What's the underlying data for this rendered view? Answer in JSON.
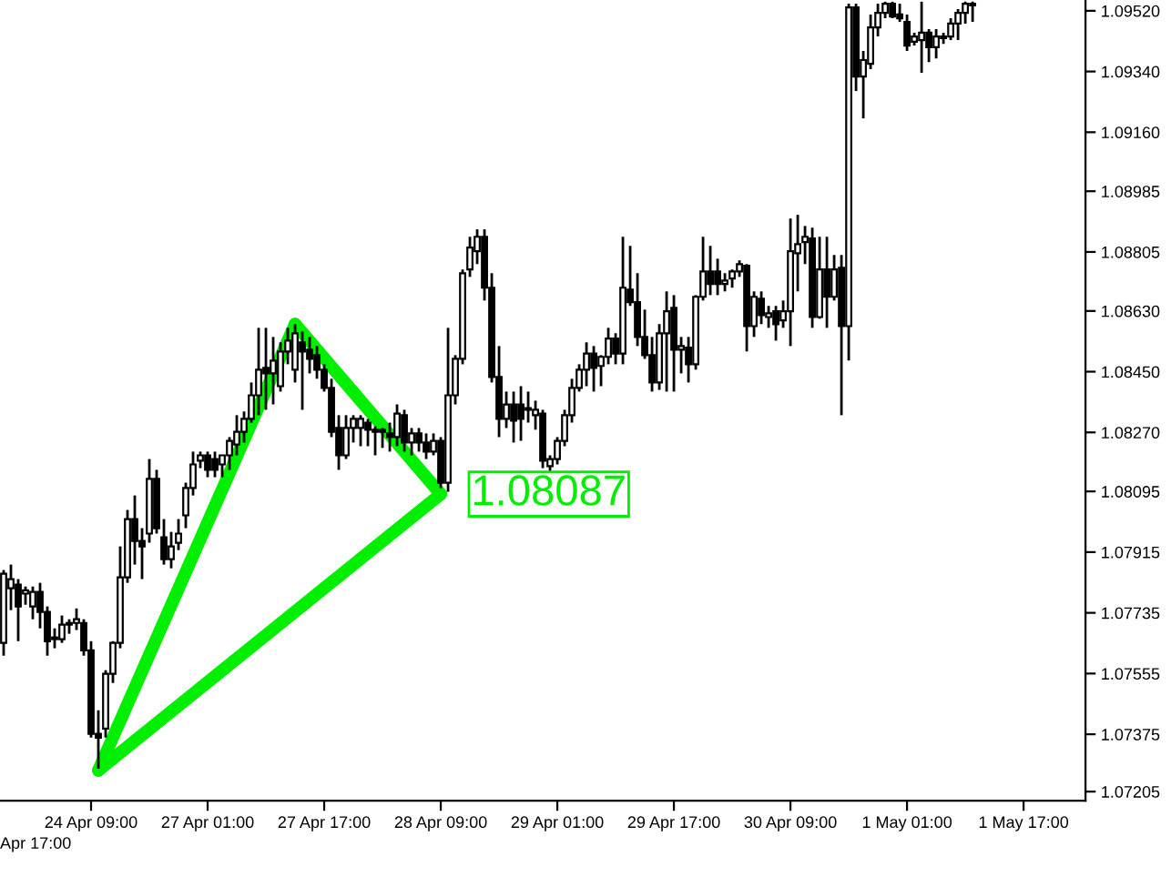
{
  "chart_data": {
    "type": "candlestick",
    "color": "#000000",
    "categories": [
      null,
      null,
      null,
      null,
      null,
      null,
      null,
      null,
      null,
      null,
      null,
      null,
      "24 Apr 09:00",
      null,
      null,
      null,
      null,
      null,
      null,
      null,
      null,
      null,
      null,
      null,
      null,
      null,
      null,
      null,
      "27 Apr 01:00",
      null,
      null,
      null,
      null,
      null,
      null,
      null,
      null,
      null,
      null,
      null,
      null,
      null,
      null,
      null,
      "27 Apr 17:00",
      null,
      null,
      null,
      null,
      null,
      null,
      null,
      null,
      null,
      null,
      null,
      null,
      null,
      null,
      null,
      "28 Apr 09:00",
      null,
      null,
      null,
      null,
      null,
      null,
      null,
      null,
      null,
      null,
      null,
      null,
      null,
      null,
      null,
      "29 Apr 01:00",
      null,
      null,
      null,
      null,
      null,
      null,
      null,
      null,
      null,
      null,
      null,
      null,
      null,
      null,
      null,
      "29 Apr 17:00",
      null,
      null,
      null,
      null,
      null,
      null,
      null,
      null,
      null,
      null,
      null,
      null,
      null,
      null,
      null,
      "30 Apr 09:00",
      null,
      null,
      null,
      null,
      null,
      null,
      null,
      null,
      null,
      null,
      null,
      null,
      null,
      null,
      null,
      "1 May 01:00",
      null,
      null,
      null,
      null,
      null,
      null,
      null,
      null,
      null,
      null,
      null,
      null,
      null,
      null,
      null,
      "1 May 17:00",
      null,
      null,
      null,
      null,
      null,
      null,
      null,
      null
    ],
    "ohlc": [
      [
        1.07646,
        1.07862,
        1.07608,
        1.07851
      ],
      [
        1.07808,
        1.07878,
        1.07743,
        1.07835
      ],
      [
        1.07819,
        1.07835,
        1.07651,
        1.07754
      ],
      [
        1.07792,
        1.07813,
        1.07759,
        1.07802
      ],
      [
        1.07754,
        1.07813,
        1.07716,
        1.07797
      ],
      [
        1.07797,
        1.07824,
        1.07689,
        1.07738
      ],
      [
        1.07738,
        1.07754,
        1.07608,
        1.07651
      ],
      [
        1.07657,
        1.07689,
        1.0763,
        1.07662
      ],
      [
        1.07657,
        1.07727,
        1.07646,
        1.077
      ],
      [
        1.077,
        1.07716,
        1.07673,
        1.07705
      ],
      [
        1.07705,
        1.07748,
        1.07684,
        1.07716
      ],
      [
        1.07705,
        1.07716,
        1.07608,
        1.07624
      ],
      [
        1.07624,
        1.07651,
        1.07365,
        1.07376
      ],
      [
        1.07376,
        1.07446,
        1.07273,
        1.07365
      ],
      [
        1.07392,
        1.07565,
        1.07365,
        1.07554
      ],
      [
        1.07554,
        1.07651,
        1.07527,
        1.07646
      ],
      [
        1.07646,
        1.07932,
        1.0763,
        1.0784
      ],
      [
        1.0784,
        1.0804,
        1.07824,
        1.08013
      ],
      [
        1.08013,
        1.08083,
        1.07878,
        1.07948
      ],
      [
        1.07948,
        1.07986,
        1.07835,
        1.07932
      ],
      [
        1.0797,
        1.08191,
        1.07943,
        1.08132
      ],
      [
        1.08132,
        1.08159,
        1.0797,
        1.07986
      ],
      [
        1.07959,
        1.08013,
        1.07878,
        1.07894
      ],
      [
        1.07894,
        1.07975,
        1.07867,
        1.07932
      ],
      [
        1.07943,
        1.08013,
        1.07921,
        1.0797
      ],
      [
        1.08024,
        1.08121,
        1.07986,
        1.08105
      ],
      [
        1.08105,
        1.08213,
        1.08083,
        1.08175
      ],
      [
        1.08186,
        1.08213,
        1.08164,
        1.08202
      ],
      [
        1.08202,
        1.08213,
        1.08137,
        1.08159
      ],
      [
        1.08191,
        1.08213,
        1.08137,
        1.08159
      ],
      [
        1.08175,
        1.08202,
        1.08137,
        1.08202
      ],
      [
        1.08202,
        1.08256,
        1.08159,
        1.08245
      ],
      [
        1.08234,
        1.08321,
        1.08202,
        1.08272
      ],
      [
        1.08272,
        1.08332,
        1.0824,
        1.0831
      ],
      [
        1.0831,
        1.08418,
        1.08299,
        1.0838
      ],
      [
        1.0838,
        1.0858,
        1.08321,
        1.08456
      ],
      [
        1.08461,
        1.0858,
        1.08337,
        1.08445
      ],
      [
        1.08445,
        1.08553,
        1.08353,
        1.08483
      ],
      [
        1.08407,
        1.08537,
        1.08391,
        1.0851
      ],
      [
        1.0851,
        1.0858,
        1.08472,
        1.08542
      ],
      [
        1.08456,
        1.08591,
        1.08418,
        1.08564
      ],
      [
        1.08537,
        1.08569,
        1.08337,
        1.0851
      ],
      [
        1.08515,
        1.08553,
        1.08445,
        1.08488
      ],
      [
        1.08499,
        1.08526,
        1.08429,
        1.08456
      ],
      [
        1.08456,
        1.08472,
        1.08391,
        1.08402
      ],
      [
        1.08402,
        1.08429,
        1.08256,
        1.08272
      ],
      [
        1.08283,
        1.08321,
        1.08159,
        1.08202
      ],
      [
        1.08202,
        1.08321,
        1.08191,
        1.08283
      ],
      [
        1.08283,
        1.08321,
        1.0824,
        1.0831
      ],
      [
        1.08283,
        1.08321,
        1.08229,
        1.0831
      ],
      [
        1.08299,
        1.0831,
        1.08229,
        1.08278
      ],
      [
        1.08278,
        1.08288,
        1.08202,
        1.08272
      ],
      [
        1.08272,
        1.08283,
        1.08224,
        1.08278
      ],
      [
        1.08267,
        1.08299,
        1.08213,
        1.08256
      ],
      [
        1.08256,
        1.08353,
        1.08229,
        1.08326
      ],
      [
        1.08321,
        1.08337,
        1.08213,
        1.0824
      ],
      [
        1.0824,
        1.08283,
        1.08202,
        1.08267
      ],
      [
        1.08267,
        1.08283,
        1.08213,
        1.0824
      ],
      [
        1.0824,
        1.08267,
        1.08191,
        1.08213
      ],
      [
        1.08213,
        1.08267,
        1.08202,
        1.08245
      ],
      [
        1.08245,
        1.08256,
        1.08105,
        1.08121
      ],
      [
        1.08121,
        1.0858,
        1.08094,
        1.0838
      ],
      [
        1.0838,
        1.08499,
        1.08353,
        1.08488
      ],
      [
        1.08488,
        1.08753,
        1.08472,
        1.08742
      ],
      [
        1.08753,
        1.0885,
        1.08731,
        1.08818
      ],
      [
        1.08807,
        1.08872,
        1.08769,
        1.0885
      ],
      [
        1.0885,
        1.08872,
        1.08661,
        1.08699
      ],
      [
        1.08699,
        1.08742,
        1.08418,
        1.08434
      ],
      [
        1.08434,
        1.08526,
        1.08256,
        1.0831
      ],
      [
        1.0831,
        1.08391,
        1.08283,
        1.08353
      ],
      [
        1.08353,
        1.08391,
        1.0824,
        1.08305
      ],
      [
        1.08353,
        1.08407,
        1.08245,
        1.0831
      ],
      [
        1.08337,
        1.08391,
        1.08299,
        1.08342
      ],
      [
        1.08321,
        1.08364,
        1.08278,
        1.08337
      ],
      [
        1.08326,
        1.08337,
        1.08164,
        1.08186
      ],
      [
        1.0817,
        1.08202,
        1.08148,
        1.08191
      ],
      [
        1.08191,
        1.08256,
        1.08175,
        1.08245
      ],
      [
        1.08245,
        1.08337,
        1.08229,
        1.08321
      ],
      [
        1.08321,
        1.08429,
        1.08299,
        1.08402
      ],
      [
        1.08402,
        1.08472,
        1.08391,
        1.08456
      ],
      [
        1.08456,
        1.08537,
        1.08407,
        1.08504
      ],
      [
        1.08504,
        1.08526,
        1.08391,
        1.08461
      ],
      [
        1.08467,
        1.08499,
        1.08407,
        1.08494
      ],
      [
        1.08494,
        1.0858,
        1.08472,
        1.08548
      ],
      [
        1.08548,
        1.08564,
        1.08472,
        1.08504
      ],
      [
        1.08504,
        1.0885,
        1.08472,
        1.08699
      ],
      [
        1.08693,
        1.08823,
        1.08645,
        1.08656
      ],
      [
        1.08656,
        1.08742,
        1.08526,
        1.08553
      ],
      [
        1.08553,
        1.08634,
        1.08488,
        1.08499
      ],
      [
        1.08499,
        1.08553,
        1.08391,
        1.08418
      ],
      [
        1.08418,
        1.08591,
        1.08396,
        1.08564
      ],
      [
        1.08564,
        1.08688,
        1.08391,
        1.08629
      ],
      [
        1.08639,
        1.08677,
        1.08391,
        1.08515
      ],
      [
        1.08515,
        1.08553,
        1.08445,
        1.08526
      ],
      [
        1.08521,
        1.08553,
        1.08418,
        1.08472
      ],
      [
        1.08472,
        1.08677,
        1.08456,
        1.08672
      ],
      [
        1.08672,
        1.0885,
        1.08661,
        1.08747
      ],
      [
        1.08747,
        1.08823,
        1.08677,
        1.0871
      ],
      [
        1.08747,
        1.08785,
        1.08677,
        1.0871
      ],
      [
        1.0871,
        1.08742,
        1.08688,
        1.0872
      ],
      [
        1.08726,
        1.08753,
        1.08699,
        1.08747
      ],
      [
        1.08747,
        1.0878,
        1.08731,
        1.08769
      ],
      [
        1.08764,
        1.08769,
        1.0851,
        1.08585
      ],
      [
        1.08585,
        1.08688,
        1.08553,
        1.08672
      ],
      [
        1.08666,
        1.08688,
        1.08591,
        1.08618
      ],
      [
        1.08612,
        1.08645,
        1.0858,
        1.08623
      ],
      [
        1.08629,
        1.08645,
        1.08542,
        1.08591
      ],
      [
        1.08602,
        1.08661,
        1.0858,
        1.08629
      ],
      [
        1.08629,
        1.08904,
        1.08526,
        1.08807
      ],
      [
        1.08801,
        1.08915,
        1.08688,
        1.08828
      ],
      [
        1.08834,
        1.08882,
        1.08769,
        1.0885
      ],
      [
        1.08845,
        1.08877,
        1.0858,
        1.08612
      ],
      [
        1.08612,
        1.0885,
        1.08607,
        1.08753
      ],
      [
        1.08753,
        1.0885,
        1.0858,
        1.08672
      ],
      [
        1.08672,
        1.08796,
        1.08661,
        1.08753
      ],
      [
        1.08758,
        1.08796,
        1.08321,
        1.08585
      ],
      [
        1.08585,
        1.09541,
        1.08483,
        1.0953
      ],
      [
        1.0953,
        1.09541,
        1.09282,
        1.09325
      ],
      [
        1.09325,
        1.09401,
        1.09201,
        1.09374
      ],
      [
        1.09363,
        1.09509,
        1.09347,
        1.09471
      ],
      [
        1.09471,
        1.09541,
        1.09444,
        1.09514
      ],
      [
        1.09514,
        1.09547,
        1.09498,
        1.09541
      ],
      [
        1.09541,
        1.09547,
        1.09498,
        1.09503
      ],
      [
        1.09509,
        1.09541,
        1.09487,
        1.09498
      ],
      [
        1.09487,
        1.09509,
        1.09401,
        1.09417
      ],
      [
        1.09428,
        1.09455,
        1.09417,
        1.09444
      ],
      [
        1.09433,
        1.09547,
        1.09336,
        1.09455
      ],
      [
        1.09455,
        1.09466,
        1.09368,
        1.09412
      ],
      [
        1.09412,
        1.09466,
        1.09379,
        1.09444
      ],
      [
        1.09444,
        1.09455,
        1.09422,
        1.09439
      ],
      [
        1.09444,
        1.09498,
        1.09433,
        1.09482
      ],
      [
        1.09482,
        1.09525,
        1.09433,
        1.09514
      ],
      [
        1.09514,
        1.09547,
        1.09482,
        1.09541
      ],
      [
        1.09536,
        1.09547,
        1.09487,
        1.09541
      ],
      null,
      null,
      null,
      null,
      null,
      null,
      null,
      null,
      null,
      null,
      null,
      null,
      null,
      null,
      null
    ],
    "series": [
      {
        "type": "line",
        "color": "#00ee00",
        "values": [
          null,
          null,
          null,
          null,
          null,
          null,
          null,
          null,
          null,
          null,
          null,
          null,
          null,
          1.07268,
          null,
          null,
          null,
          null,
          null,
          null,
          null,
          null,
          null,
          null,
          null,
          null,
          null,
          null,
          null,
          null,
          null,
          null,
          null,
          null,
          null,
          null,
          null,
          null,
          null,
          null,
          1.08591,
          null,
          null,
          null,
          null,
          null,
          null,
          null,
          null,
          null,
          null,
          null,
          null,
          null,
          null,
          null,
          null,
          null,
          null,
          null,
          null,
          null,
          null,
          null,
          null,
          null,
          null,
          null,
          null,
          null,
          null,
          null,
          null,
          null,
          null,
          null,
          null,
          null,
          null,
          null,
          null,
          null,
          null,
          null,
          null,
          null,
          null,
          null,
          null,
          null,
          null,
          null,
          null,
          null,
          null,
          null,
          null,
          null,
          null,
          null,
          null,
          null,
          null,
          null,
          null,
          null,
          null,
          null,
          null,
          null,
          null,
          null,
          null,
          null,
          null,
          null,
          null,
          null,
          null,
          null,
          null,
          null,
          null,
          null,
          null,
          null,
          null,
          null,
          null,
          null,
          null,
          null,
          null,
          null,
          null,
          null,
          null,
          null,
          null,
          null,
          null,
          null,
          null,
          null,
          null,
          null,
          null,
          null,
          null
        ]
      },
      {
        "type": "line",
        "color": "#00ee00",
        "values": [
          null,
          null,
          null,
          null,
          null,
          null,
          null,
          null,
          null,
          null,
          null,
          null,
          null,
          null,
          null,
          null,
          null,
          null,
          null,
          null,
          null,
          null,
          null,
          null,
          null,
          null,
          null,
          null,
          null,
          null,
          null,
          null,
          null,
          null,
          null,
          null,
          null,
          null,
          null,
          null,
          1.08591,
          null,
          null,
          null,
          null,
          null,
          null,
          null,
          null,
          null,
          null,
          null,
          null,
          null,
          null,
          null,
          null,
          null,
          null,
          null,
          1.08087,
          null,
          null,
          null,
          null,
          null,
          null,
          null,
          null,
          null,
          null,
          null,
          null,
          null,
          null,
          null,
          null,
          null,
          null,
          null,
          null,
          null,
          null,
          null,
          null,
          null,
          null,
          null,
          null,
          null,
          null,
          null,
          null,
          null,
          null,
          null,
          null,
          null,
          null,
          null,
          null,
          null,
          null,
          null,
          null,
          null,
          null,
          null,
          null,
          null,
          null,
          null,
          null,
          null,
          null,
          null,
          null,
          null,
          null,
          null,
          null,
          null,
          null,
          null,
          null,
          null,
          null,
          null,
          null,
          null,
          null,
          null,
          null,
          null,
          null,
          null,
          null,
          null,
          null,
          null,
          null,
          null,
          null,
          null,
          null,
          null,
          null,
          null,
          null
        ]
      },
      {
        "type": "line",
        "color": "#00ee00",
        "values": [
          null,
          null,
          null,
          null,
          null,
          null,
          null,
          null,
          null,
          null,
          null,
          null,
          null,
          1.07268,
          null,
          null,
          null,
          null,
          null,
          null,
          null,
          null,
          null,
          null,
          null,
          null,
          null,
          null,
          null,
          null,
          null,
          null,
          null,
          null,
          null,
          null,
          null,
          null,
          null,
          null,
          null,
          null,
          null,
          null,
          null,
          null,
          null,
          null,
          null,
          null,
          null,
          null,
          null,
          null,
          null,
          null,
          null,
          null,
          null,
          null,
          1.08087,
          null,
          null,
          null,
          null,
          null,
          null,
          null,
          null,
          null,
          null,
          null,
          null,
          null,
          null,
          null,
          null,
          null,
          null,
          null,
          null,
          null,
          null,
          null,
          null,
          null,
          null,
          null,
          null,
          null,
          null,
          null,
          null,
          null,
          null,
          null,
          null,
          null,
          null,
          null,
          null,
          null,
          null,
          null,
          null,
          null,
          null,
          null,
          null,
          null,
          null,
          null,
          null,
          null,
          null,
          null,
          null,
          null,
          null,
          null,
          null,
          null,
          null,
          null,
          null,
          null,
          null,
          null,
          null,
          null,
          null,
          null,
          null,
          null,
          null,
          null,
          null,
          null,
          null,
          null,
          null,
          null,
          null,
          null,
          null,
          null,
          null,
          null,
          null
        ]
      }
    ],
    "annotations": [
      "1.08087",
      "Apr 17:00"
    ],
    "ylim": [
      1.07178,
      1.09552
    ],
    "yticks": [
      {
        "value": 1.0952,
        "label": "1.09520"
      },
      {
        "value": 1.0934,
        "label": "1.09340"
      },
      {
        "value": 1.0916,
        "label": "1.09160"
      },
      1.08985,
      1.08805,
      {
        "value": 1.0863,
        "label": "1.08630"
      },
      {
        "value": 1.0845,
        "label": "1.08450"
      },
      {
        "value": 1.0827,
        "label": "1.08270"
      },
      1.08095,
      1.07915,
      1.07735,
      1.07555,
      1.07375,
      1.07205
    ],
    "grid": false
  }
}
